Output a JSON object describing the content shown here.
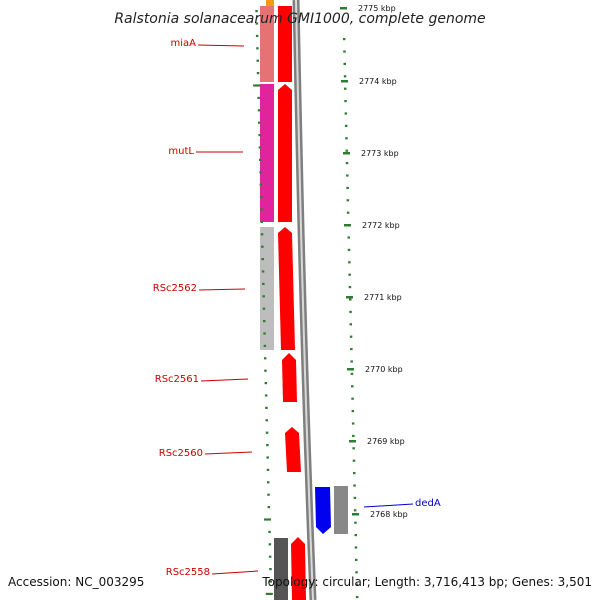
{
  "title": "Ralstonia solanacearum GMI1000, complete genome",
  "footer": {
    "accession": "Accession: NC_003295",
    "summary": "Topology: circular; Length: 3,716,413 bp; Genes: 3,501"
  },
  "colors": {
    "reverse_label": "#cc0000",
    "forward_label": "#0000cc",
    "scale_dash": "#2e7d32",
    "backbone": "#8c8c8c"
  },
  "scale_ticks": [
    {
      "label": "2775 kbp",
      "value_kbp": 2775
    },
    {
      "label": "2774 kbp",
      "value_kbp": 2774
    },
    {
      "label": "2773 kbp",
      "value_kbp": 2773
    },
    {
      "label": "2772 kbp",
      "value_kbp": 2772
    },
    {
      "label": "2771 kbp",
      "value_kbp": 2771
    },
    {
      "label": "2770 kbp",
      "value_kbp": 2770
    },
    {
      "label": "2769 kbp",
      "value_kbp": 2769
    },
    {
      "label": "2768 kbp",
      "value_kbp": 2768
    }
  ],
  "gene_labels": [
    {
      "name": "miaA",
      "strand": "reverse"
    },
    {
      "name": "mutL",
      "strand": "reverse"
    },
    {
      "name": "RSc2562",
      "strand": "reverse"
    },
    {
      "name": "RSc2561",
      "strand": "reverse"
    },
    {
      "name": "RSc2560",
      "strand": "reverse"
    },
    {
      "name": "dedA",
      "strand": "forward"
    },
    {
      "name": "RSc2558",
      "strand": "reverse"
    }
  ]
}
